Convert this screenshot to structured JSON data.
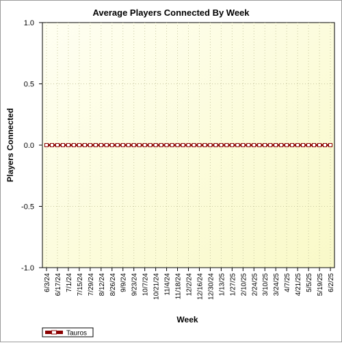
{
  "chart_data": {
    "type": "line",
    "title": "Average Players Connected By Week",
    "xlabel": "Week",
    "ylabel": "Players Connected",
    "ylim": [
      -1.0,
      1.0
    ],
    "yticks": [
      "1.0",
      "0.5",
      "0.0",
      "-0.5",
      "-1.0"
    ],
    "ytick_values": [
      1.0,
      0.5,
      0.0,
      -0.5,
      -1.0
    ],
    "grid": true,
    "legend_position": "bottom-left",
    "x_labels": [
      "6/3/24",
      "6/17/24",
      "7/1/24",
      "7/15/24",
      "7/29/24",
      "8/12/24",
      "8/26/24",
      "9/9/24",
      "9/23/24",
      "10/7/24",
      "10/21/24",
      "11/4/24",
      "11/18/24",
      "12/2/24",
      "12/16/24",
      "12/30/24",
      "1/13/25",
      "1/27/25",
      "2/10/25",
      "2/24/25",
      "3/10/25",
      "3/24/25",
      "4/7/25",
      "4/21/25",
      "5/5/25",
      "5/19/25",
      "6/2/25"
    ],
    "x_start": "6/3/24",
    "x_end": "6/2/25",
    "series": [
      {
        "name": "Tauros",
        "color": "#8b0000",
        "marker": "square",
        "values": [
          0,
          0,
          0,
          0,
          0,
          0,
          0,
          0,
          0,
          0,
          0,
          0,
          0,
          0,
          0,
          0,
          0,
          0,
          0,
          0,
          0,
          0,
          0,
          0,
          0,
          0,
          0,
          0,
          0,
          0,
          0,
          0,
          0,
          0,
          0,
          0,
          0,
          0,
          0,
          0,
          0,
          0,
          0,
          0,
          0,
          0,
          0,
          0,
          0,
          0,
          0,
          0,
          0
        ]
      }
    ],
    "colors": {
      "plot_background_top": "#fffff0",
      "plot_background_bottom": "#fafac8",
      "grid": "#c8c8a0",
      "line": "#8b0000",
      "marker_fill": "#ffffff"
    }
  }
}
